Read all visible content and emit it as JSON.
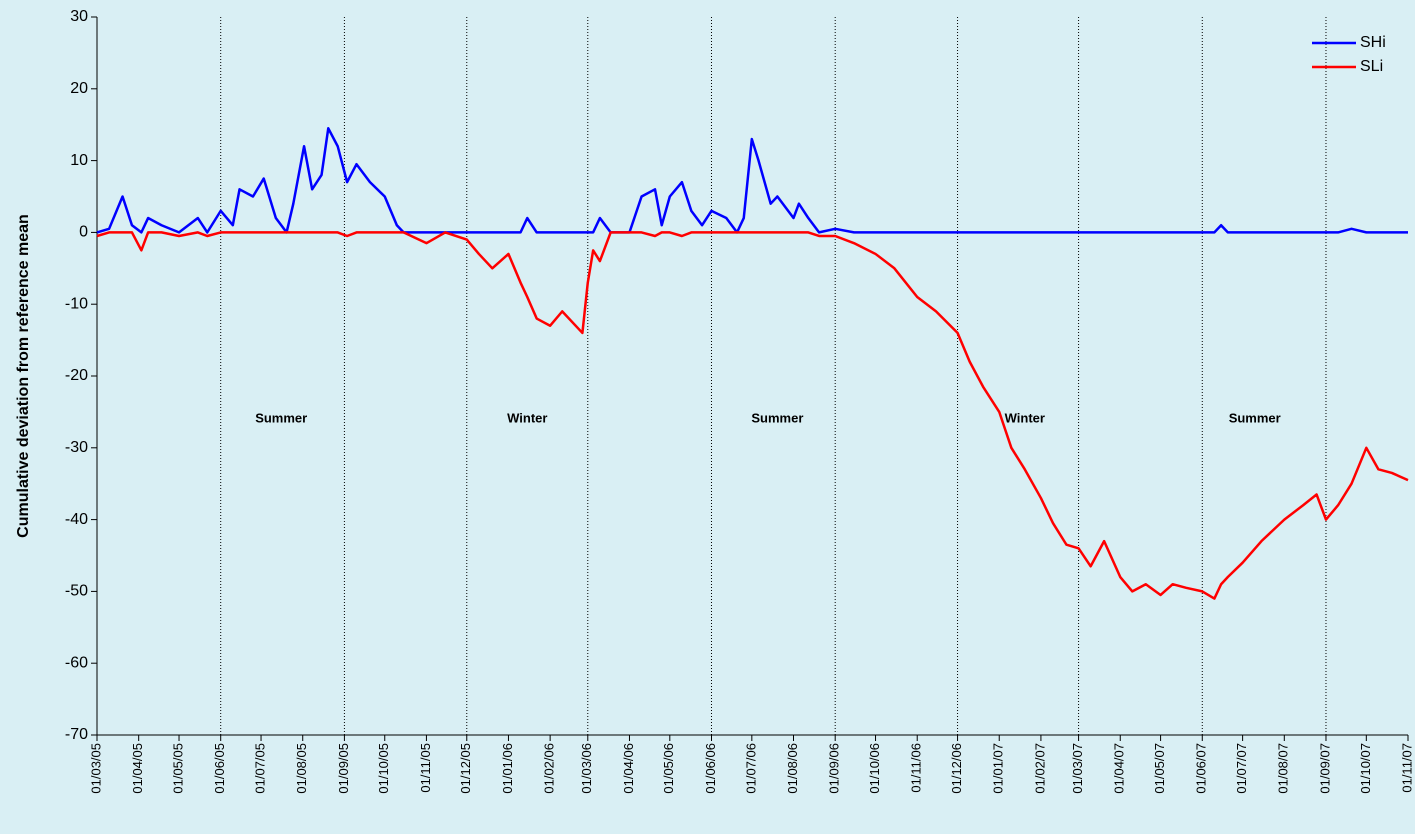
{
  "chart_data": {
    "type": "line",
    "ylabel": "Cumulative deviation  from  reference  mean",
    "x": [
      "2005-03-01",
      "2005-03-10",
      "2005-03-20",
      "2005-03-27",
      "2005-04-03",
      "2005-04-08",
      "2005-04-18",
      "2005-05-01",
      "2005-05-15",
      "2005-05-22",
      "2005-06-01",
      "2005-06-10",
      "2005-06-15",
      "2005-06-25",
      "2005-07-03",
      "2005-07-12",
      "2005-07-20",
      "2005-07-25",
      "2005-08-02",
      "2005-08-08",
      "2005-08-15",
      "2005-08-20",
      "2005-08-27",
      "2005-09-03",
      "2005-09-10",
      "2005-09-20",
      "2005-10-01",
      "2005-10-10",
      "2005-10-15",
      "2005-11-01",
      "2005-11-15",
      "2005-12-01",
      "2005-12-10",
      "2005-12-20",
      "2006-01-01",
      "2006-01-10",
      "2006-01-15",
      "2006-01-22",
      "2006-02-01",
      "2006-02-10",
      "2006-02-25",
      "2006-03-01",
      "2006-03-05",
      "2006-03-10",
      "2006-03-18",
      "2006-04-01",
      "2006-04-10",
      "2006-04-20",
      "2006-04-25",
      "2006-05-01",
      "2006-05-10",
      "2006-05-17",
      "2006-05-25",
      "2006-06-01",
      "2006-06-12",
      "2006-06-20",
      "2006-06-25",
      "2006-07-01",
      "2006-07-06",
      "2006-07-15",
      "2006-07-20",
      "2006-08-01",
      "2006-08-05",
      "2006-08-12",
      "2006-08-20",
      "2006-09-01",
      "2006-09-15",
      "2006-10-01",
      "2006-10-15",
      "2006-11-01",
      "2006-11-15",
      "2006-12-01",
      "2006-12-10",
      "2006-12-20",
      "2007-01-01",
      "2007-01-10",
      "2007-01-20",
      "2007-02-01",
      "2007-02-10",
      "2007-02-20",
      "2007-03-01",
      "2007-03-10",
      "2007-03-20",
      "2007-04-01",
      "2007-04-10",
      "2007-04-20",
      "2007-05-01",
      "2007-05-10",
      "2007-05-20",
      "2007-06-01",
      "2007-06-10",
      "2007-06-15",
      "2007-06-20",
      "2007-07-01",
      "2007-07-15",
      "2007-08-01",
      "2007-08-15",
      "2007-08-25",
      "2007-09-01",
      "2007-09-10",
      "2007-09-20",
      "2007-10-01",
      "2007-10-10",
      "2007-10-20",
      "2007-11-01"
    ],
    "series": [
      {
        "name": "SHi",
        "color": "#0000ff",
        "values": [
          0,
          0.5,
          5,
          1,
          0,
          2,
          1,
          0,
          2,
          0,
          3,
          1,
          6,
          5,
          7.5,
          2,
          0,
          4,
          12,
          6,
          8,
          14.5,
          12,
          7,
          9.5,
          7,
          5,
          1,
          0,
          0,
          0,
          0,
          0,
          0,
          0,
          0,
          2,
          0,
          0,
          0,
          0,
          0,
          0,
          2,
          0,
          0,
          5,
          6,
          1,
          5,
          7,
          3,
          1,
          3,
          2,
          0,
          2,
          13,
          10,
          4,
          5,
          2,
          4,
          2,
          0,
          0.5,
          0,
          0,
          0,
          0,
          0,
          0,
          0,
          0,
          0,
          0,
          0,
          0,
          0,
          0,
          0,
          0,
          0,
          0,
          0,
          0,
          0,
          0,
          0,
          0,
          0,
          1,
          0,
          0,
          0,
          0,
          0,
          0,
          0,
          0,
          0.5,
          0,
          0,
          0,
          0
        ]
      },
      {
        "name": "SLi",
        "color": "#ff0000",
        "values": [
          -0.5,
          0,
          0,
          0,
          -2.5,
          0,
          0,
          -0.5,
          0,
          -0.5,
          0,
          0,
          0,
          0,
          0,
          0,
          0,
          0,
          0,
          0,
          0,
          0,
          0,
          -0.5,
          0,
          0,
          0,
          0,
          0,
          -1.5,
          0,
          -1,
          -3,
          -5,
          -3,
          -7,
          -9,
          -12,
          -13,
          -11,
          -14,
          -7,
          -2.5,
          -4,
          0,
          0,
          0,
          -0.5,
          0,
          0,
          -0.5,
          0,
          0,
          0,
          0,
          0,
          0,
          0,
          0,
          0,
          0,
          0,
          0,
          0,
          -0.5,
          -0.5,
          -1.5,
          -3,
          -5,
          -9,
          -11,
          -14,
          -18,
          -21.5,
          -25,
          -30,
          -33,
          -37,
          -40.5,
          -43.5,
          -44,
          -46.5,
          -43,
          -48,
          -50,
          -49,
          -50.5,
          -49,
          -49.5,
          -50,
          -51,
          -49,
          -48,
          -46,
          -43,
          -40,
          -38,
          -36.5,
          -40,
          -38,
          -35,
          -30,
          -33,
          -33.5,
          -34.5
        ]
      }
    ],
    "xlim": [
      "2005-03-01",
      "2007-11-01"
    ],
    "xticks": [
      {
        "value": "2005-03-01",
        "label": "01/03/05"
      },
      {
        "value": "2005-04-01",
        "label": "01/04/05"
      },
      {
        "value": "2005-05-01",
        "label": "01/05/05"
      },
      {
        "value": "2005-06-01",
        "label": "01/06/05"
      },
      {
        "value": "2005-07-01",
        "label": "01/07/05"
      },
      {
        "value": "2005-08-01",
        "label": "01/08/05"
      },
      {
        "value": "2005-09-01",
        "label": "01/09/05"
      },
      {
        "value": "2005-10-01",
        "label": "01/10/05"
      },
      {
        "value": "2005-11-01",
        "label": "01/11/05"
      },
      {
        "value": "2005-12-01",
        "label": "01/12/05"
      },
      {
        "value": "2006-01-01",
        "label": "01/01/06"
      },
      {
        "value": "2006-02-01",
        "label": "01/02/06"
      },
      {
        "value": "2006-03-01",
        "label": "01/03/06"
      },
      {
        "value": "2006-04-01",
        "label": "01/04/06"
      },
      {
        "value": "2006-05-01",
        "label": "01/05/06"
      },
      {
        "value": "2006-06-01",
        "label": "01/06/06"
      },
      {
        "value": "2006-07-01",
        "label": "01/07/06"
      },
      {
        "value": "2006-08-01",
        "label": "01/08/06"
      },
      {
        "value": "2006-09-01",
        "label": "01/09/06"
      },
      {
        "value": "2006-10-01",
        "label": "01/10/06"
      },
      {
        "value": "2006-11-01",
        "label": "01/11/06"
      },
      {
        "value": "2006-12-01",
        "label": "01/12/06"
      },
      {
        "value": "2007-01-01",
        "label": "01/01/07"
      },
      {
        "value": "2007-02-01",
        "label": "01/02/07"
      },
      {
        "value": "2007-03-01",
        "label": "01/03/07"
      },
      {
        "value": "2007-04-01",
        "label": "01/04/07"
      },
      {
        "value": "2007-05-01",
        "label": "01/05/07"
      },
      {
        "value": "2007-06-01",
        "label": "01/06/07"
      },
      {
        "value": "2007-07-01",
        "label": "01/07/07"
      },
      {
        "value": "2007-08-01",
        "label": "01/08/07"
      },
      {
        "value": "2007-09-01",
        "label": "01/09/07"
      },
      {
        "value": "2007-10-01",
        "label": "01/10/07"
      },
      {
        "value": "2007-11-01",
        "label": "01/11/07"
      }
    ],
    "ylim": [
      -70,
      30
    ],
    "yticks": [
      -70,
      -60,
      -50,
      -40,
      -30,
      -20,
      -10,
      0,
      10,
      20,
      30
    ],
    "season_lines": [
      "2005-06-01",
      "2005-09-01",
      "2005-12-01",
      "2006-03-01",
      "2006-06-01",
      "2006-09-01",
      "2006-12-01",
      "2007-03-01",
      "2007-06-01",
      "2007-09-01"
    ],
    "annotations": [
      {
        "text": "Summer",
        "x": "2005-07-16",
        "y": -26
      },
      {
        "text": "Winter",
        "x": "2006-01-15",
        "y": -26
      },
      {
        "text": "Summer",
        "x": "2006-07-20",
        "y": -26
      },
      {
        "text": "Winter",
        "x": "2007-01-20",
        "y": -26
      },
      {
        "text": "Summer",
        "x": "2007-07-10",
        "y": -26
      }
    ],
    "legend": "upper right"
  }
}
